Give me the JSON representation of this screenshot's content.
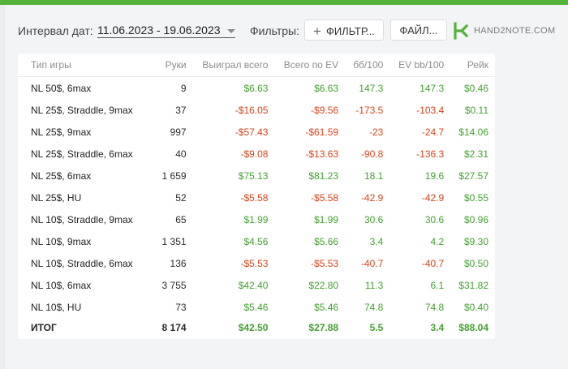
{
  "toolbar": {
    "interval_label": "Интервал дат:",
    "date_range": "11.06.2023 - 19.06.2023",
    "filters_label": "Фильтры:",
    "filter_button": "ФИЛЬТР...",
    "file_button": "ФАЙЛ...",
    "logo_text": "HAND2NOTE.COM"
  },
  "colors": {
    "positive": "#43a12f",
    "negative": "#d9441a",
    "accent": "#55b33b"
  },
  "table": {
    "headers": [
      "Тип игры",
      "Руки",
      "Выиграл всего",
      "Всего по EV",
      "бб/100",
      "EV bb/100",
      "Рейк"
    ],
    "rows": [
      [
        "NL 50$, 6max",
        "9",
        "$6.63",
        "$6.63",
        "147.3",
        "147.3",
        "$0.46"
      ],
      [
        "NL 25$, Straddle, 9max",
        "37",
        "-$16.05",
        "-$9.56",
        "-173.5",
        "-103.4",
        "$0.11"
      ],
      [
        "NL 25$, 9max",
        "997",
        "-$57.43",
        "-$61.59",
        "-23",
        "-24.7",
        "$14.06"
      ],
      [
        "NL 25$, Straddle, 6max",
        "40",
        "-$9.08",
        "-$13.63",
        "-90.8",
        "-136.3",
        "$2.31"
      ],
      [
        "NL 25$, 6max",
        "1 659",
        "$75.13",
        "$81.23",
        "18.1",
        "19.6",
        "$27.57"
      ],
      [
        "NL 25$, HU",
        "52",
        "-$5.58",
        "-$5.58",
        "-42.9",
        "-42.9",
        "$0.55"
      ],
      [
        "NL 10$, Straddle, 9max",
        "65",
        "$1.99",
        "$1.99",
        "30.6",
        "30.6",
        "$0.96"
      ],
      [
        "NL 10$, 9max",
        "1 351",
        "$4.56",
        "$5.66",
        "3.4",
        "4.2",
        "$9.30"
      ],
      [
        "NL 10$, Straddle, 6max",
        "136",
        "-$5.53",
        "-$5.53",
        "-40.7",
        "-40.7",
        "$0.50"
      ],
      [
        "NL 10$, 6max",
        "3 755",
        "$42.40",
        "$22.80",
        "11.3",
        "6.1",
        "$31.82"
      ],
      [
        "NL 10$, HU",
        "73",
        "$5.46",
        "$5.46",
        "74.8",
        "74.8",
        "$0.40"
      ]
    ],
    "total": [
      "ИТОГ",
      "8 174",
      "$42.50",
      "$27.88",
      "5.5",
      "3.4",
      "$88.04"
    ]
  }
}
